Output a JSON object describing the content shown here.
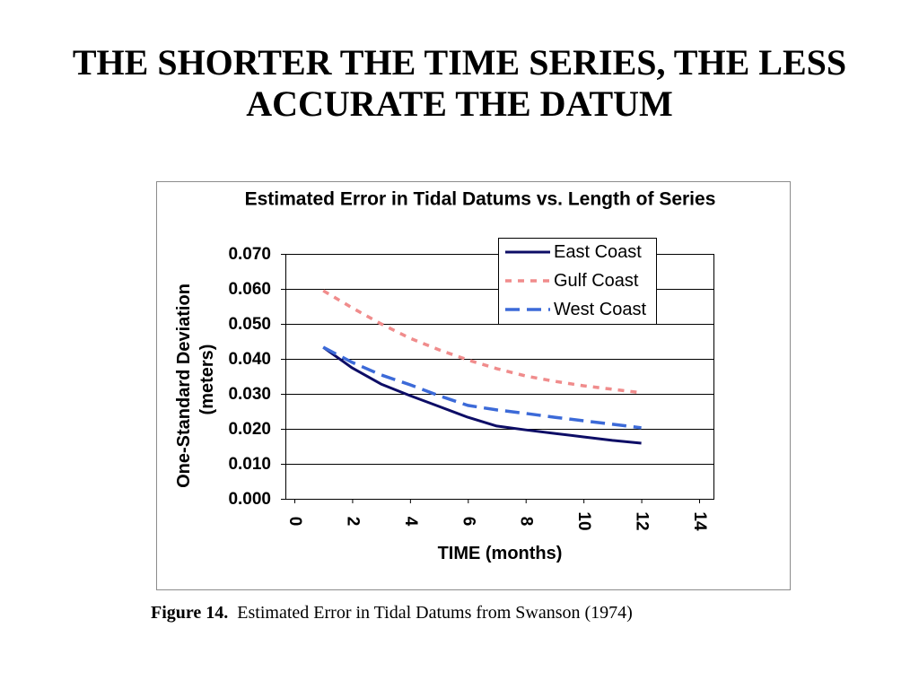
{
  "slide": {
    "title_lines": [
      "THE SHORTER THE TIME SERIES, THE LESS",
      "ACCURATE THE DATUM"
    ]
  },
  "chart_data": {
    "type": "line",
    "title": "Estimated Error in Tidal Datums vs. Length of Series",
    "xlabel": "TIME (months)",
    "ylabel": [
      "One-Standard Deviation",
      "(meters)"
    ],
    "xlim": [
      0,
      14
    ],
    "ylim": [
      0,
      0.07
    ],
    "xticks": [
      "0",
      "2",
      "4",
      "6",
      "8",
      "10",
      "12",
      "14"
    ],
    "yticks": [
      "0.000",
      "0.010",
      "0.020",
      "0.030",
      "0.040",
      "0.050",
      "0.060",
      "0.070"
    ],
    "grid": "horizontal",
    "legend_position": "top-right",
    "x": [
      1,
      2,
      3,
      4,
      5,
      6,
      7,
      8,
      9,
      10,
      11,
      12
    ],
    "series": [
      {
        "name": "East Coast",
        "color": "#0d0d66",
        "line_style": "solid",
        "values": [
          0.0433,
          0.0374,
          0.0328,
          0.0295,
          0.0264,
          0.0233,
          0.0208,
          0.0197,
          0.0187,
          0.0177,
          0.0167,
          0.0159
        ]
      },
      {
        "name": "Gulf Coast",
        "color": "#f08c8c",
        "line_style": "dotted",
        "values": [
          0.0595,
          0.0546,
          0.05,
          0.0459,
          0.0426,
          0.0397,
          0.0372,
          0.0351,
          0.0336,
          0.0323,
          0.0313,
          0.0303
        ]
      },
      {
        "name": "West Coast",
        "color": "#3c6ad8",
        "line_style": "dashed",
        "values": [
          0.0433,
          0.039,
          0.0354,
          0.0326,
          0.0295,
          0.0267,
          0.0254,
          0.0244,
          0.0233,
          0.0223,
          0.0213,
          0.0203
        ]
      }
    ]
  },
  "caption": {
    "label": "Figure 14.",
    "text": "Estimated Error in Tidal Datums from Swanson (1974)"
  }
}
